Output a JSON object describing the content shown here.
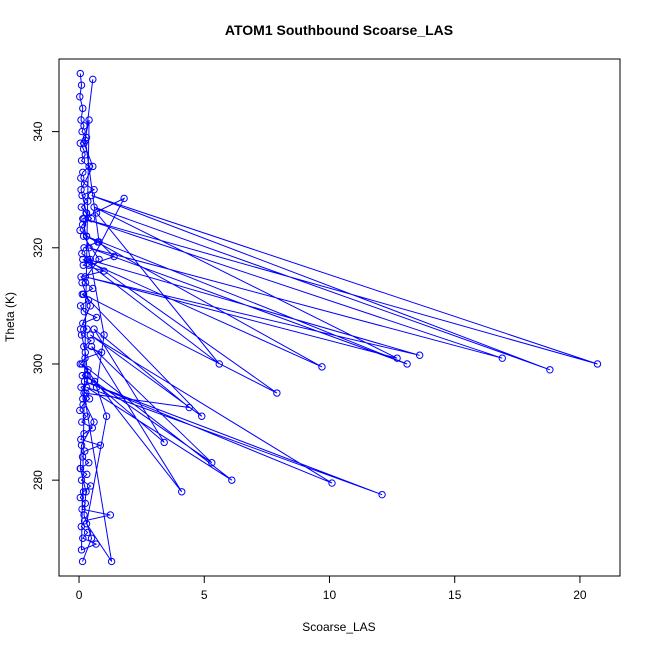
{
  "chart_data": {
    "type": "line",
    "title": "ATOM1 Southbound Scoarse_LAS",
    "xlabel": "Scoarse_LAS",
    "ylabel": "Theta (K)",
    "xlim": [
      -0.8,
      21.6
    ],
    "ylim": [
      263.5,
      352.5
    ],
    "xticks": [
      0,
      5,
      10,
      15,
      20
    ],
    "yticks": [
      280,
      300,
      320,
      340
    ],
    "grid": false,
    "legend": "none",
    "marker": "open-circle",
    "color": "#0000ff",
    "series": [
      {
        "x": [
          0.05,
          0.1,
          0.03,
          0.15,
          0.08,
          0.2,
          0.12,
          0.3,
          0.05,
          0.18,
          0.25,
          0.1,
          0.4,
          0.15,
          0.07,
          0.22,
          0.6,
          0.12,
          0.35,
          0.09,
          0.28,
          0.5,
          0.14,
          0.04,
          0.3,
          0.75,
          0.2,
          0.11,
          0.45,
          0.17,
          1.0,
          0.08,
          0.26,
          0.55,
          0.13,
          0.38,
          0.06,
          0.21,
          0.7,
          0.15,
          0.32,
          0.1,
          0.48,
          0.19,
          0.9,
          0.24,
          0.05,
          0.36,
          0.13,
          0.62,
          0.08,
          0.27,
          0.42,
          0.16,
          0.03,
          0.29,
          0.11,
          0.53,
          0.2,
          0.07,
          0.85,
          0.23,
          0.14,
          0.39,
          0.06,
          0.31,
          0.1,
          0.46,
          0.18,
          0.05,
          0.25,
          0.12,
          1.25,
          0.22,
          0.09,
          0.34,
          0.15,
          0.68,
          0.1,
          0.4,
          0.2,
          0.55,
          0.08,
          0.3,
          0.18,
          0.8,
          0.12,
          0.45,
          0.06,
          0.25,
          0.35,
          0.15,
          0.6,
          0.1,
          0.05,
          0.28,
          0.2,
          0.5,
          0.14
        ],
        "y": [
          350,
          348,
          346,
          344,
          342,
          341,
          340,
          339,
          338,
          337,
          336,
          335,
          334,
          333,
          332,
          331,
          330,
          329,
          328,
          327,
          326,
          325,
          324,
          323,
          322,
          321,
          320,
          319,
          318,
          317,
          316,
          315,
          314,
          313,
          312,
          311,
          310,
          309,
          308,
          307,
          306,
          305,
          304,
          303,
          302,
          301,
          300,
          299,
          298,
          297,
          296,
          295,
          294,
          293,
          292,
          291,
          290,
          289,
          288,
          287,
          286,
          285,
          284,
          283,
          282,
          281,
          280,
          279,
          278,
          277,
          276,
          275,
          274,
          273,
          272,
          271,
          270,
          269,
          268,
          342,
          338,
          334,
          330,
          326,
          322,
          318,
          314,
          310,
          306,
          302,
          298,
          294,
          290,
          286,
          282,
          278,
          274,
          270,
          266
        ]
      },
      {
        "x": [
          0.7,
          5.6,
          0.15,
          9.7,
          0.3,
          13.1,
          0.4,
          16.9,
          0.2,
          20.7,
          0.5,
          18.8,
          0.6,
          12.7,
          0.25,
          13.6,
          0.35,
          7.9,
          0.18,
          4.9,
          0.45,
          10.1,
          0.22,
          12.1,
          0.3,
          6.1,
          0.12,
          4.1,
          0.5,
          5.3,
          0.28,
          3.4,
          0.6,
          4.4,
          0.2,
          1.3,
          0.3,
          1.1,
          0.7,
          1.0,
          0.15,
          1.8,
          0.4,
          1.4,
          0.8,
          0.25,
          0.55
        ],
        "y": [
          326,
          300,
          318,
          299.5,
          322,
          300,
          320,
          301,
          325,
          300,
          329,
          299,
          327,
          301,
          315,
          301.5,
          318,
          295,
          312,
          291,
          305,
          279.5,
          297,
          277.5,
          296,
          280,
          300,
          278,
          303,
          283,
          298,
          286.5,
          306,
          292.5,
          295,
          266,
          272.5,
          291,
          296,
          305,
          325,
          328.5,
          317,
          318.5,
          321,
          338.5,
          349
        ]
      }
    ]
  }
}
